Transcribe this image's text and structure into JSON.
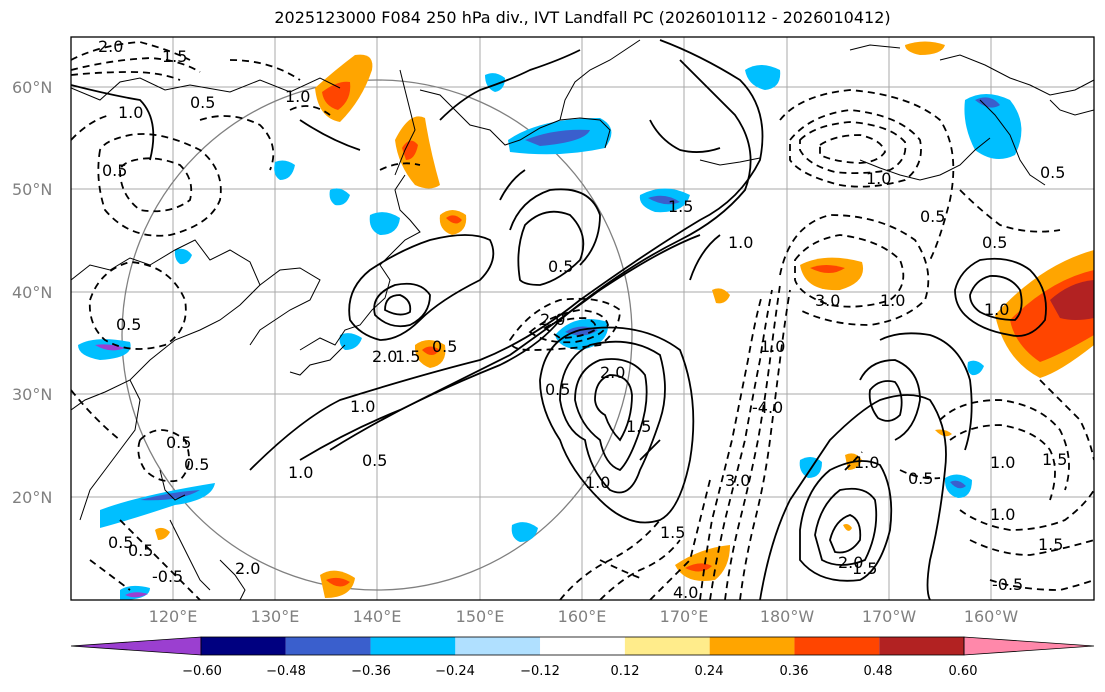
{
  "title": "2025123000 F084 250 hPa div., IVT Landfall PC (2026010112 - 2026010412)",
  "lat_labels": [
    "60°N",
    "50°N",
    "40°N",
    "30°N",
    "20°N"
  ],
  "lon_labels": [
    "120°E",
    "130°E",
    "140°E",
    "150°E",
    "160°E",
    "170°E",
    "180°W",
    "170°W",
    "160°W"
  ],
  "colorbar": {
    "tick_labels": [
      "−0.60",
      "−0.48",
      "−0.36",
      "−0.24",
      "−0.12",
      "0.12",
      "0.24",
      "0.36",
      "0.48",
      "0.60"
    ],
    "colors": [
      "#9b3fd0",
      "#000080",
      "#3a5fcd",
      "#00bfff",
      "#b0e0ff",
      "#ffffff",
      "#ffec8b",
      "#ffa500",
      "#ff4500",
      "#b22222",
      "#ff88aa"
    ]
  },
  "contour_labels": [
    {
      "id": "c1",
      "text": "2.0"
    },
    {
      "id": "c2",
      "text": "1.5"
    },
    {
      "id": "c3",
      "text": "1.0"
    },
    {
      "id": "c4",
      "text": "0.5"
    },
    {
      "id": "c5",
      "text": "0.5"
    },
    {
      "id": "c6",
      "text": "1.0"
    },
    {
      "id": "c7",
      "text": "0.5"
    },
    {
      "id": "c8",
      "text": "1.0"
    },
    {
      "id": "c9",
      "text": "0.5"
    },
    {
      "id": "c10",
      "text": "2.0"
    },
    {
      "id": "c11",
      "text": "1.5"
    },
    {
      "id": "c12",
      "text": "0.5"
    },
    {
      "id": "c13",
      "text": "1.0"
    },
    {
      "id": "c14",
      "text": "0.5"
    },
    {
      "id": "c15",
      "text": "2.0"
    },
    {
      "id": "c16",
      "text": "1.5"
    },
    {
      "id": "c17",
      "text": "1.0"
    },
    {
      "id": "c18",
      "text": "0.5"
    },
    {
      "id": "c19",
      "text": "2.0"
    },
    {
      "id": "c20",
      "text": "1.5"
    },
    {
      "id": "c21",
      "text": "1.0"
    },
    {
      "id": "c22",
      "text": "-4.0"
    },
    {
      "id": "c23",
      "text": "3.0"
    },
    {
      "id": "c24",
      "text": "1.0"
    },
    {
      "id": "c25",
      "text": "3.0"
    },
    {
      "id": "c26",
      "text": "1.0"
    },
    {
      "id": "c27",
      "text": "1.0"
    },
    {
      "id": "c28",
      "text": "0.5"
    },
    {
      "id": "c29",
      "text": "1.0"
    },
    {
      "id": "c30",
      "text": "0.5"
    },
    {
      "id": "c31",
      "text": "0.5"
    },
    {
      "id": "c32",
      "text": "1.0"
    },
    {
      "id": "c33",
      "text": "1.5"
    },
    {
      "id": "c34",
      "text": "1.0"
    },
    {
      "id": "c35",
      "text": "1.5"
    },
    {
      "id": "c36",
      "text": "-0.5"
    },
    {
      "id": "c37",
      "text": "2.0"
    },
    {
      "id": "c38",
      "text": "1.5"
    },
    {
      "id": "c39",
      "text": "4.0"
    },
    {
      "id": "c40",
      "text": "1.5"
    },
    {
      "id": "c41",
      "text": "0.5"
    },
    {
      "id": "c42",
      "text": "1.0"
    },
    {
      "id": "c43",
      "text": "0.5"
    },
    {
      "id": "c44",
      "text": "0.5"
    },
    {
      "id": "c45",
      "text": "2.0"
    },
    {
      "id": "c46",
      "text": "-0.5"
    },
    {
      "id": "c47",
      "text": "0.5"
    },
    {
      "id": "c48",
      "text": "0.5"
    }
  ]
}
